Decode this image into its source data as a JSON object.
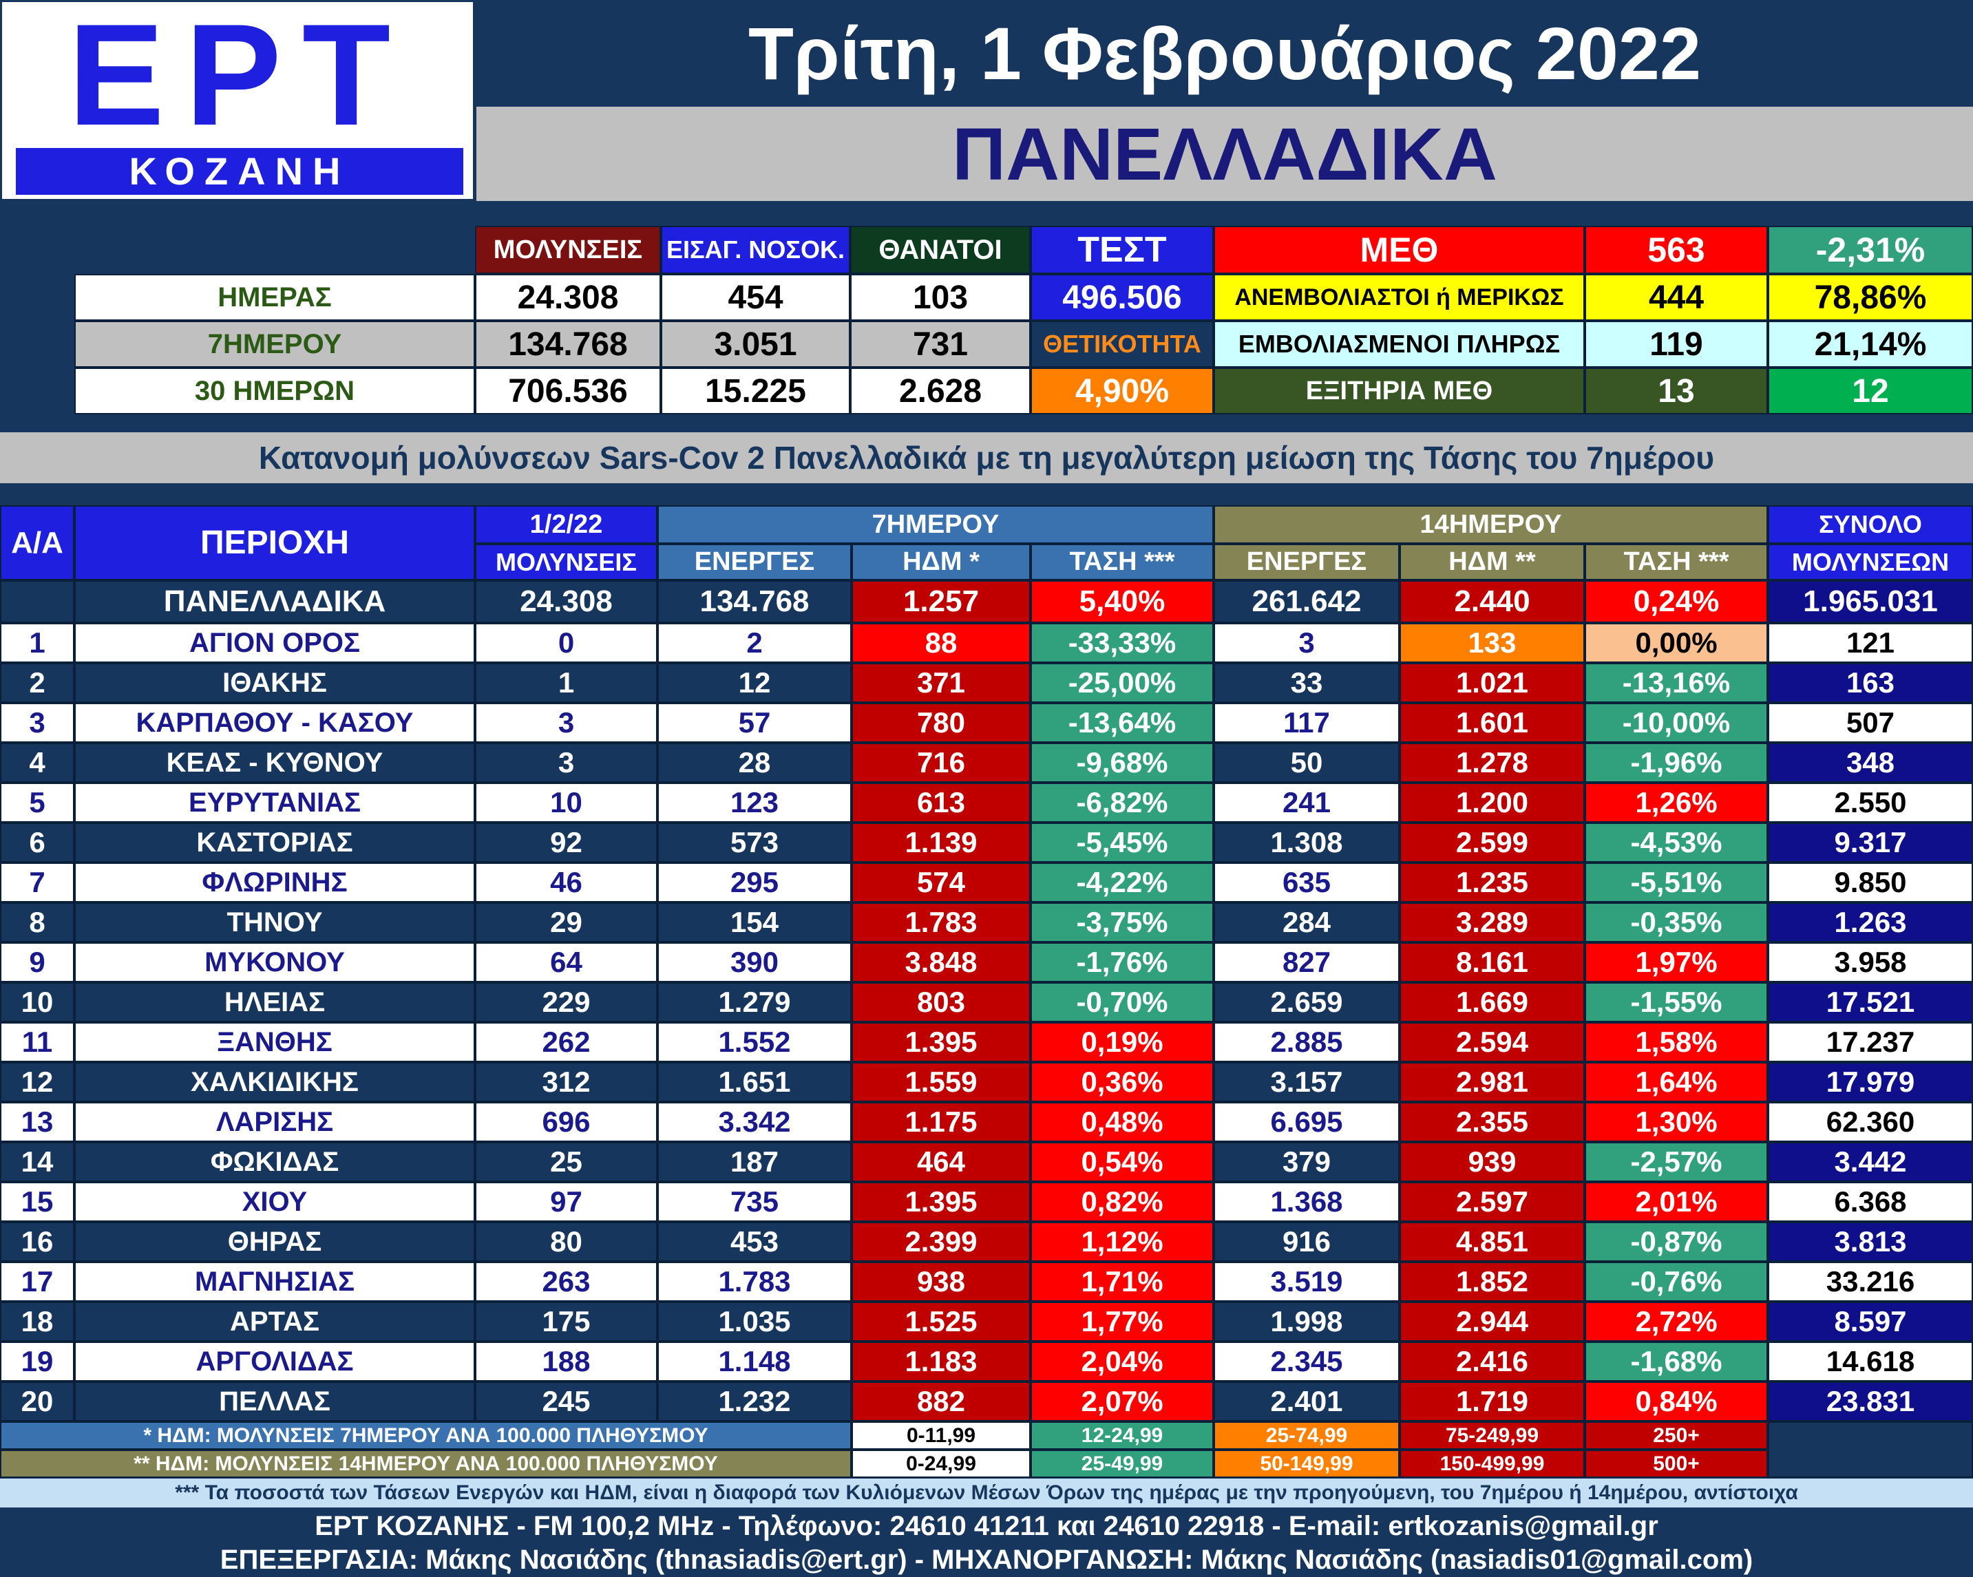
{
  "header": {
    "logo_main": "ΕΡΤ",
    "logo_sub": "ΚΟΖΑΝΗ",
    "date": "Τρίτη, 1 Φεβρουάριος 2022",
    "scope": "ΠΑΝΕΛΛΑΔΙΚΑ"
  },
  "summary": {
    "col_infections": "ΜΟΛΥΝΣΕΙΣ",
    "col_hospital": "ΕΙΣΑΓ. ΝΟΣΟΚ.",
    "col_deaths": "ΘΑΝΑΤΟΙ",
    "col_tests": "ΤΕΣΤ",
    "rows": [
      {
        "label": "ΗΜΕΡΑΣ",
        "infections": "24.308",
        "hospital": "454",
        "deaths": "103"
      },
      {
        "label": "7ΗΜΕΡΟΥ",
        "infections": "134.768",
        "hospital": "3.051",
        "deaths": "731"
      },
      {
        "label": "30 ΗΜΕΡΩΝ",
        "infections": "706.536",
        "hospital": "15.225",
        "deaths": "2.628"
      }
    ],
    "tests_value": "496.506",
    "positivity_label": "ΘΕΤΙΚΟΤΗΤΑ",
    "positivity_value": "4,90%",
    "icu": {
      "label": "ΜΕΘ",
      "value": "563",
      "pct": "-2,31%",
      "unvacc_label": "ΑΝΕΜΒΟΛΙΑΣΤΟΙ ή ΜΕΡΙΚΩΣ",
      "unvacc_value": "444",
      "unvacc_pct": "78,86%",
      "vacc_label": "ΕΜΒΟΛΙΑΣΜΕΝΟΙ ΠΛΗΡΩΣ",
      "vacc_value": "119",
      "vacc_pct": "21,14%",
      "exits_label": "ΕΞΙΤΗΡΙΑ ΜΕΘ",
      "exits_value": "13",
      "exits_value2": "12"
    }
  },
  "section_title": "Κατανομή μολύνσεων Sars-Cov 2 Πανελλαδικά με τη μεγαλύτερη μείωση της Τάσης του 7ημέρου",
  "table": {
    "h_aa": "Α/Α",
    "h_region": "ΠΕΡΙΟΧΗ",
    "h_date": "1/2/22",
    "h_infections": "ΜΟΛΥΝΣΕΙΣ",
    "h_7day": "7ΗΜΕΡΟΥ",
    "h_14day": "14ΗΜΕΡΟΥ",
    "h_active": "ΕΝΕΡΓΕΣ",
    "h_hdm7": "ΗΔΜ *",
    "h_trend7": "ΤΑΣΗ ***",
    "h_active14": "ΕΝΕΡΓΕΣ",
    "h_hdm14": "ΗΔΜ **",
    "h_trend14": "ΤΑΣΗ ***",
    "h_total1": "ΣΥΝΟΛΟ",
    "h_total2": "ΜΟΛΥΝΣΕΩΝ",
    "national": {
      "region": "ΠΑΝΕΛΛΑΔΙΚΑ",
      "day": "24.308",
      "act7": "134.768",
      "hdm7": "1.257",
      "tr7": "5,40%",
      "act14": "261.642",
      "hdm14": "2.440",
      "tr14": "0,24%",
      "total": "1.965.031"
    },
    "rows": [
      {
        "aa": "1",
        "region": "ΑΓΙΟΝ ΟΡΟΣ",
        "day": "0",
        "act7": "2",
        "hdm7": "88",
        "tr7": "-33,33%",
        "act14": "3",
        "hdm14": "133",
        "tr14": "0,00%",
        "total": "121",
        "hdm7_c": "red",
        "tr7_c": "teal",
        "hdm14_c": "orange",
        "tr14_c": "peach"
      },
      {
        "aa": "2",
        "region": "ΙΘΑΚΗΣ",
        "day": "1",
        "act7": "12",
        "hdm7": "371",
        "tr7": "-25,00%",
        "act14": "33",
        "hdm14": "1.021",
        "tr14": "-13,16%",
        "total": "163",
        "hdm7_c": "darkred",
        "tr7_c": "teal",
        "hdm14_c": "darkred",
        "tr14_c": "teal"
      },
      {
        "aa": "3",
        "region": "ΚΑΡΠΑΘΟΥ - ΚΑΣΟΥ",
        "day": "3",
        "act7": "57",
        "hdm7": "780",
        "tr7": "-13,64%",
        "act14": "117",
        "hdm14": "1.601",
        "tr14": "-10,00%",
        "total": "507",
        "hdm7_c": "darkred",
        "tr7_c": "teal",
        "hdm14_c": "darkred",
        "tr14_c": "teal"
      },
      {
        "aa": "4",
        "region": "ΚΕΑΣ - ΚΥΘΝΟΥ",
        "day": "3",
        "act7": "28",
        "hdm7": "716",
        "tr7": "-9,68%",
        "act14": "50",
        "hdm14": "1.278",
        "tr14": "-1,96%",
        "total": "348",
        "hdm7_c": "darkred",
        "tr7_c": "teal",
        "hdm14_c": "darkred",
        "tr14_c": "teal"
      },
      {
        "aa": "5",
        "region": "ΕΥΡΥΤΑΝΙΑΣ",
        "day": "10",
        "act7": "123",
        "hdm7": "613",
        "tr7": "-6,82%",
        "act14": "241",
        "hdm14": "1.200",
        "tr14": "1,26%",
        "total": "2.550",
        "hdm7_c": "darkred",
        "tr7_c": "teal",
        "hdm14_c": "darkred",
        "tr14_c": "red"
      },
      {
        "aa": "6",
        "region": "ΚΑΣΤΟΡΙΑΣ",
        "day": "92",
        "act7": "573",
        "hdm7": "1.139",
        "tr7": "-5,45%",
        "act14": "1.308",
        "hdm14": "2.599",
        "tr14": "-4,53%",
        "total": "9.317",
        "hdm7_c": "darkred",
        "tr7_c": "teal",
        "hdm14_c": "darkred",
        "tr14_c": "teal"
      },
      {
        "aa": "7",
        "region": "ΦΛΩΡΙΝΗΣ",
        "day": "46",
        "act7": "295",
        "hdm7": "574",
        "tr7": "-4,22%",
        "act14": "635",
        "hdm14": "1.235",
        "tr14": "-5,51%",
        "total": "9.850",
        "hdm7_c": "darkred",
        "tr7_c": "teal",
        "hdm14_c": "darkred",
        "tr14_c": "teal"
      },
      {
        "aa": "8",
        "region": "ΤΗΝΟΥ",
        "day": "29",
        "act7": "154",
        "hdm7": "1.783",
        "tr7": "-3,75%",
        "act14": "284",
        "hdm14": "3.289",
        "tr14": "-0,35%",
        "total": "1.263",
        "hdm7_c": "darkred",
        "tr7_c": "teal",
        "hdm14_c": "darkred",
        "tr14_c": "teal"
      },
      {
        "aa": "9",
        "region": "ΜΥΚΟΝΟΥ",
        "day": "64",
        "act7": "390",
        "hdm7": "3.848",
        "tr7": "-1,76%",
        "act14": "827",
        "hdm14": "8.161",
        "tr14": "1,97%",
        "total": "3.958",
        "hdm7_c": "darkred",
        "tr7_c": "teal",
        "hdm14_c": "darkred",
        "tr14_c": "red"
      },
      {
        "aa": "10",
        "region": "ΗΛΕΙΑΣ",
        "day": "229",
        "act7": "1.279",
        "hdm7": "803",
        "tr7": "-0,70%",
        "act14": "2.659",
        "hdm14": "1.669",
        "tr14": "-1,55%",
        "total": "17.521",
        "hdm7_c": "darkred",
        "tr7_c": "teal",
        "hdm14_c": "darkred",
        "tr14_c": "teal"
      },
      {
        "aa": "11",
        "region": "ΞΑΝΘΗΣ",
        "day": "262",
        "act7": "1.552",
        "hdm7": "1.395",
        "tr7": "0,19%",
        "act14": "2.885",
        "hdm14": "2.594",
        "tr14": "1,58%",
        "total": "17.237",
        "hdm7_c": "darkred",
        "tr7_c": "red",
        "hdm14_c": "darkred",
        "tr14_c": "red"
      },
      {
        "aa": "12",
        "region": "ΧΑΛΚΙΔΙΚΗΣ",
        "day": "312",
        "act7": "1.651",
        "hdm7": "1.559",
        "tr7": "0,36%",
        "act14": "3.157",
        "hdm14": "2.981",
        "tr14": "1,64%",
        "total": "17.979",
        "hdm7_c": "darkred",
        "tr7_c": "red",
        "hdm14_c": "darkred",
        "tr14_c": "red"
      },
      {
        "aa": "13",
        "region": "ΛΑΡΙΣΗΣ",
        "day": "696",
        "act7": "3.342",
        "hdm7": "1.175",
        "tr7": "0,48%",
        "act14": "6.695",
        "hdm14": "2.355",
        "tr14": "1,30%",
        "total": "62.360",
        "hdm7_c": "darkred",
        "tr7_c": "red",
        "hdm14_c": "darkred",
        "tr14_c": "red"
      },
      {
        "aa": "14",
        "region": "ΦΩΚΙΔΑΣ",
        "day": "25",
        "act7": "187",
        "hdm7": "464",
        "tr7": "0,54%",
        "act14": "379",
        "hdm14": "939",
        "tr14": "-2,57%",
        "total": "3.442",
        "hdm7_c": "darkred",
        "tr7_c": "red",
        "hdm14_c": "darkred",
        "tr14_c": "teal"
      },
      {
        "aa": "15",
        "region": "ΧΙΟΥ",
        "day": "97",
        "act7": "735",
        "hdm7": "1.395",
        "tr7": "0,82%",
        "act14": "1.368",
        "hdm14": "2.597",
        "tr14": "2,01%",
        "total": "6.368",
        "hdm7_c": "darkred",
        "tr7_c": "red",
        "hdm14_c": "darkred",
        "tr14_c": "red"
      },
      {
        "aa": "16",
        "region": "ΘΗΡΑΣ",
        "day": "80",
        "act7": "453",
        "hdm7": "2.399",
        "tr7": "1,12%",
        "act14": "916",
        "hdm14": "4.851",
        "tr14": "-0,87%",
        "total": "3.813",
        "hdm7_c": "darkred",
        "tr7_c": "red",
        "hdm14_c": "darkred",
        "tr14_c": "teal"
      },
      {
        "aa": "17",
        "region": "ΜΑΓΝΗΣΙΑΣ",
        "day": "263",
        "act7": "1.783",
        "hdm7": "938",
        "tr7": "1,71%",
        "act14": "3.519",
        "hdm14": "1.852",
        "tr14": "-0,76%",
        "total": "33.216",
        "hdm7_c": "darkred",
        "tr7_c": "red",
        "hdm14_c": "darkred",
        "tr14_c": "teal"
      },
      {
        "aa": "18",
        "region": "ΑΡΤΑΣ",
        "day": "175",
        "act7": "1.035",
        "hdm7": "1.525",
        "tr7": "1,77%",
        "act14": "1.998",
        "hdm14": "2.944",
        "tr14": "2,72%",
        "total": "8.597",
        "hdm7_c": "darkred",
        "tr7_c": "red",
        "hdm14_c": "darkred",
        "tr14_c": "red"
      },
      {
        "aa": "19",
        "region": "ΑΡΓΟΛΙΔΑΣ",
        "day": "188",
        "act7": "1.148",
        "hdm7": "1.183",
        "tr7": "2,04%",
        "act14": "2.345",
        "hdm14": "2.416",
        "tr14": "-1,68%",
        "total": "14.618",
        "hdm7_c": "darkred",
        "tr7_c": "red",
        "hdm14_c": "darkred",
        "tr14_c": "teal"
      },
      {
        "aa": "20",
        "region": "ΠΕΛΛΑΣ",
        "day": "245",
        "act7": "1.232",
        "hdm7": "882",
        "tr7": "2,07%",
        "act14": "2.401",
        "hdm14": "1.719",
        "tr14": "0,84%",
        "total": "23.831",
        "hdm7_c": "darkred",
        "tr7_c": "red",
        "hdm14_c": "darkred",
        "tr14_c": "red"
      }
    ]
  },
  "legend": {
    "note1": "* ΗΔΜ: ΜΟΛΥΝΣΕΙΣ 7ΗΜΕΡΟΥ ΑΝΑ 100.000 ΠΛΗΘΥΣΜΟΥ",
    "note2": "** ΗΔΜ: ΜΟΛΥΝΣΕΙΣ 14ΗΜΕΡΟΥ ΑΝΑ 100.000 ΠΛΗΘΥΣΜΟΥ",
    "r1": [
      "0-11,99",
      "12-24,99",
      "25-74,99",
      "75-249,99",
      "250+"
    ],
    "r2": [
      "0-24,99",
      "25-49,99",
      "50-149,99",
      "150-499,99",
      "500+"
    ]
  },
  "footer": {
    "note3": "*** Τα ποσοστά των Τάσεων Ενεργών και ΗΔΜ, είναι η διαφορά των Κυλιόμενων Μέσων Όρων της ημέρας με την προηγούμενη, του 7ημέρου ή 14ημέρου, αντίστοιχα",
    "contact": "ΕΡΤ ΚΟΖΑΝΗΣ - FM 100,2 MHz - Τηλέφωνο:  24610 41211 και 24610 22918 - E-mail: ertkozanis@gmail.gr",
    "credits": "ΕΠΕΞΕΡΓΑΣΙΑ: Μάκης Νασιάδης (thnasiadis@ert.gr) - ΜΗΧΑΝΟΡΓΑΝΩΣΗ: Μάκης Νασιάδης (nasiadis01@gmail.com)"
  }
}
